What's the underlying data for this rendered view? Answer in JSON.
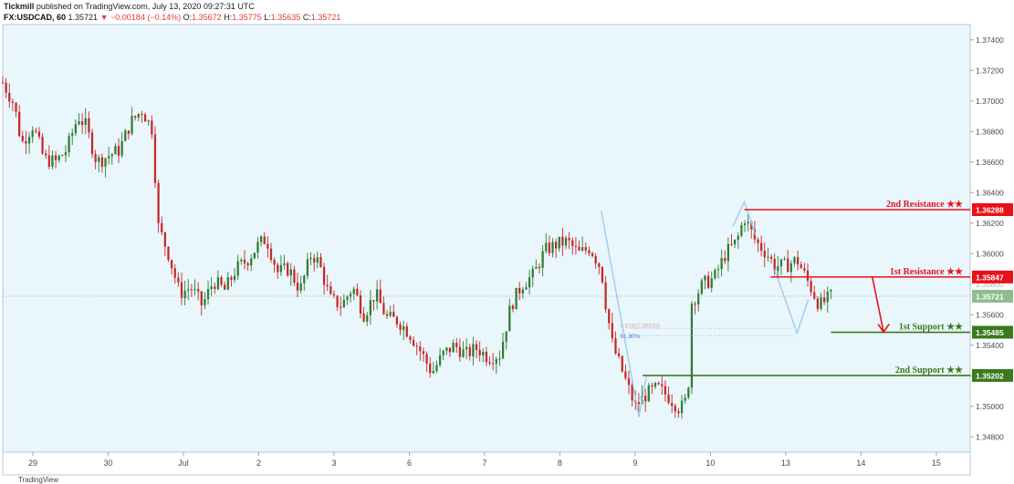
{
  "header": {
    "publisher": "Tickmill",
    "published_text": "published on TradingView.com, July 13, 2020 09:27:31 UTC",
    "symbol": "FX:USDCAD, 60",
    "last_value": "1.35721",
    "change_arrow": "▼",
    "change": "−0.00184 (−0.14%)",
    "open_label": "O:",
    "open": "1.35672",
    "high_label": "H:",
    "high": "1.35775",
    "low_label": "L:",
    "low": "1.35635",
    "close_label": "C:",
    "close": "1.35721"
  },
  "footer": {
    "text": "TradingView"
  },
  "colors": {
    "plot_bg": "#e9f6fc",
    "up": "#2e7d32",
    "down": "#c62828",
    "resistance": "#e8111a",
    "support": "#3a7a1c",
    "fib": "#8ab4e8",
    "current_price_bg": "#8fbc8f"
  },
  "chart_data": {
    "type": "candlestick",
    "symbol": "FX:USDCAD",
    "interval": "60",
    "y_axis": {
      "min": 1.347,
      "max": 1.375,
      "ticks": [
        "1.37400",
        "1.37200",
        "1.37000",
        "1.36800",
        "1.36600",
        "1.36400",
        "1.36200",
        "1.36000",
        "1.35800",
        "1.35600",
        "1.35400",
        "1.35200",
        "1.35000",
        "1.34800"
      ]
    },
    "x_axis": {
      "ticks": [
        {
          "label": "29",
          "pos": 0.4
        },
        {
          "label": "30",
          "pos": 1.4
        },
        {
          "label": "Jul",
          "pos": 2.4
        },
        {
          "label": "2",
          "pos": 3.4
        },
        {
          "label": "3",
          "pos": 4.4
        },
        {
          "label": "6",
          "pos": 5.4
        },
        {
          "label": "7",
          "pos": 6.4
        },
        {
          "label": "8",
          "pos": 7.4
        },
        {
          "label": "9",
          "pos": 8.4
        },
        {
          "label": "10",
          "pos": 9.4
        },
        {
          "label": "13",
          "pos": 10.4
        },
        {
          "label": "14",
          "pos": 11.4
        },
        {
          "label": "15",
          "pos": 12.4
        }
      ]
    },
    "close_path": [
      [
        0.0,
        1.3712
      ],
      [
        0.15,
        1.3698
      ],
      [
        0.25,
        1.3672
      ],
      [
        0.4,
        1.3684
      ],
      [
        0.55,
        1.3662
      ],
      [
        0.7,
        1.366
      ],
      [
        0.85,
        1.3668
      ],
      [
        1.0,
        1.369
      ],
      [
        1.1,
        1.3684
      ],
      [
        1.25,
        1.366
      ],
      [
        1.4,
        1.3664
      ],
      [
        1.55,
        1.3668
      ],
      [
        1.7,
        1.3686
      ],
      [
        1.85,
        1.3694
      ],
      [
        2.0,
        1.368
      ],
      [
        2.05,
        1.362
      ],
      [
        2.2,
        1.36
      ],
      [
        2.35,
        1.3574
      ],
      [
        2.5,
        1.3578
      ],
      [
        2.65,
        1.3566
      ],
      [
        2.8,
        1.3582
      ],
      [
        2.95,
        1.3576
      ],
      [
        3.1,
        1.359
      ],
      [
        3.25,
        1.3596
      ],
      [
        3.4,
        1.3606
      ],
      [
        3.5,
        1.361
      ],
      [
        3.65,
        1.3588
      ],
      [
        3.8,
        1.359
      ],
      [
        3.95,
        1.3576
      ],
      [
        4.1,
        1.36
      ],
      [
        4.2,
        1.3594
      ],
      [
        4.35,
        1.357
      ],
      [
        4.5,
        1.3566
      ],
      [
        4.65,
        1.3578
      ],
      [
        4.8,
        1.356
      ],
      [
        4.95,
        1.3574
      ],
      [
        5.1,
        1.3558
      ],
      [
        5.25,
        1.3556
      ],
      [
        5.4,
        1.3548
      ],
      [
        5.55,
        1.3536
      ],
      [
        5.7,
        1.3522
      ],
      [
        5.85,
        1.3534
      ],
      [
        6.0,
        1.354
      ],
      [
        6.15,
        1.3534
      ],
      [
        6.3,
        1.3538
      ],
      [
        6.45,
        1.3532
      ],
      [
        6.6,
        1.3534
      ],
      [
        6.75,
        1.3566
      ],
      [
        6.9,
        1.358
      ],
      [
        7.05,
        1.3586
      ],
      [
        7.2,
        1.3602
      ],
      [
        7.35,
        1.3606
      ],
      [
        7.5,
        1.3608
      ],
      [
        7.65,
        1.36
      ],
      [
        7.8,
        1.3604
      ],
      [
        7.95,
        1.359
      ],
      [
        8.0,
        1.357
      ],
      [
        8.1,
        1.354
      ],
      [
        8.25,
        1.352
      ],
      [
        8.4,
        1.35
      ],
      [
        8.55,
        1.3508
      ],
      [
        8.7,
        1.3512
      ],
      [
        8.85,
        1.3506
      ],
      [
        9.0,
        1.3498
      ],
      [
        9.1,
        1.3506
      ],
      [
        9.15,
        1.3568
      ],
      [
        9.3,
        1.358
      ],
      [
        9.45,
        1.3584
      ],
      [
        9.6,
        1.36
      ],
      [
        9.75,
        1.3608
      ],
      [
        9.85,
        1.3624
      ],
      [
        10.0,
        1.3608
      ],
      [
        10.15,
        1.36
      ],
      [
        10.25,
        1.3592
      ],
      [
        10.4,
        1.3592
      ],
      [
        10.55,
        1.3596
      ],
      [
        10.65,
        1.3586
      ],
      [
        10.75,
        1.3576
      ],
      [
        10.85,
        1.3566
      ],
      [
        10.95,
        1.357
      ],
      [
        11.0,
        1.3572
      ]
    ],
    "levels": [
      {
        "name": "2nd Resistance ★★",
        "value": 1.36288,
        "label": "1.36288",
        "kind": "resistance",
        "x_from": 9.85
      },
      {
        "name": "1st Resistance ★★",
        "value": 1.35847,
        "label": "1.35847",
        "kind": "resistance",
        "x_from": 10.2
      },
      {
        "name": "1st Support ★★",
        "value": 1.35485,
        "label": "1.35485",
        "kind": "support",
        "x_from": 11.0
      },
      {
        "name": "2nd Support ★★",
        "value": 1.35202,
        "label": "1.35202",
        "kind": "support",
        "x_from": 8.5
      }
    ],
    "current_price": {
      "value": 1.35721,
      "label": "1.35721"
    },
    "fibonacci": [
      {
        "label": "0.618(1.35510)",
        "value": 1.3551
      },
      {
        "label": "61.80%",
        "value": 1.35463
      }
    ],
    "hidden_price_label": "1.35800",
    "projection": {
      "from_x": 11.55,
      "from_y": 1.35847,
      "to_x": 11.7,
      "to_y": 1.35485
    }
  }
}
